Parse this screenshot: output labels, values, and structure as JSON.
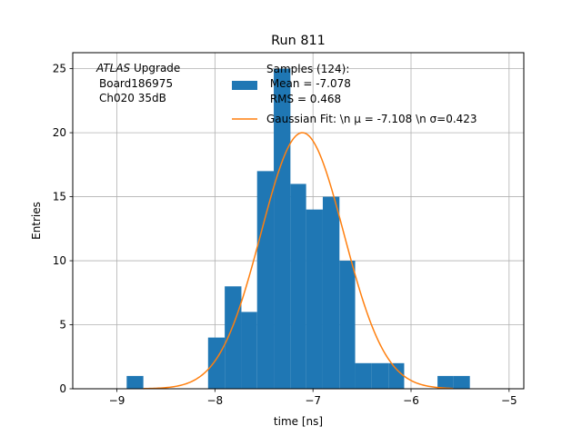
{
  "chart_data": {
    "type": "bar",
    "title": "Run 811",
    "xlabel": "time [ns]",
    "ylabel": "Entries",
    "xlim": [
      -9.45,
      -4.85
    ],
    "ylim": [
      0,
      26.25
    ],
    "grid": true,
    "x_ticks": [
      -9,
      -8,
      -7,
      -6,
      -5
    ],
    "x_tick_labels": [
      "−9",
      "−8",
      "−7",
      "−6",
      "−5"
    ],
    "y_ticks": [
      0,
      5,
      10,
      15,
      20,
      25
    ],
    "y_tick_labels": [
      "0",
      "5",
      "10",
      "15",
      "20",
      "25"
    ],
    "annotation_lines": [
      "ATLAS",
      " Upgrade",
      "Board186975",
      "Ch020 35dB"
    ],
    "legend_position": "top-right",
    "series": [
      {
        "name": "Samples (124):\n Mean = -7.078\n RMS = 0.468",
        "legend_lines": [
          "Samples (124):",
          " Mean = -7.078",
          " RMS = 0.468"
        ],
        "kind": "histogram",
        "color": "#1f77b4",
        "bins": [
          {
            "x0": -8.9,
            "x1": -8.73,
            "count": 1
          },
          {
            "x0": -8.73,
            "x1": -8.57,
            "count": 0
          },
          {
            "x0": -8.57,
            "x1": -8.4,
            "count": 0
          },
          {
            "x0": -8.4,
            "x1": -8.23,
            "count": 0
          },
          {
            "x0": -8.23,
            "x1": -8.07,
            "count": 0
          },
          {
            "x0": -8.07,
            "x1": -7.9,
            "count": 4
          },
          {
            "x0": -7.9,
            "x1": -7.73,
            "count": 8
          },
          {
            "x0": -7.73,
            "x1": -7.57,
            "count": 6
          },
          {
            "x0": -7.57,
            "x1": -7.4,
            "count": 17
          },
          {
            "x0": -7.4,
            "x1": -7.23,
            "count": 25
          },
          {
            "x0": -7.23,
            "x1": -7.07,
            "count": 16
          },
          {
            "x0": -7.07,
            "x1": -6.9,
            "count": 14
          },
          {
            "x0": -6.9,
            "x1": -6.73,
            "count": 15
          },
          {
            "x0": -6.73,
            "x1": -6.57,
            "count": 10
          },
          {
            "x0": -6.57,
            "x1": -6.4,
            "count": 2
          },
          {
            "x0": -6.4,
            "x1": -6.23,
            "count": 2
          },
          {
            "x0": -6.23,
            "x1": -6.07,
            "count": 2
          },
          {
            "x0": -6.07,
            "x1": -5.9,
            "count": 0
          },
          {
            "x0": -5.9,
            "x1": -5.73,
            "count": 0
          },
          {
            "x0": -5.73,
            "x1": -5.57,
            "count": 1
          },
          {
            "x0": -5.57,
            "x1": -5.4,
            "count": 1
          }
        ]
      },
      {
        "name": "Gaussian Fit: \\n μ = -7.108 \\n σ=0.423",
        "kind": "line",
        "color": "#ff7f0e",
        "mu": -7.108,
        "sigma": 0.423,
        "amplitude": 20,
        "x_range": [
          -8.73,
          -5.57
        ]
      }
    ]
  }
}
